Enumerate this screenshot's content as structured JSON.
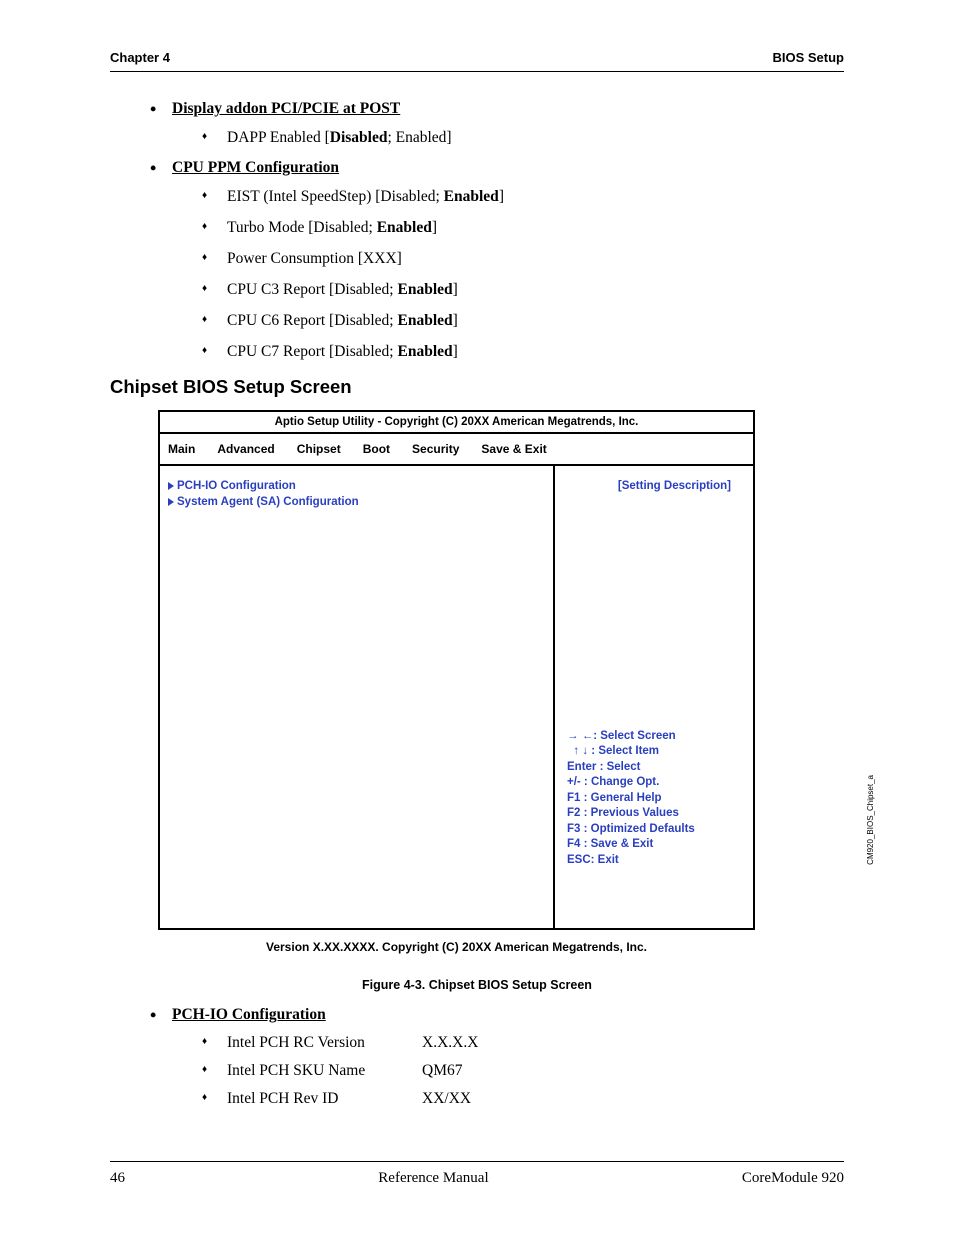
{
  "header": {
    "left": "Chapter 4",
    "right": "BIOS Setup"
  },
  "sections": {
    "displayAddon": {
      "title": "Display addon PCI/PCIE at POST",
      "items": [
        "DAPP Enabled [<b>Disabled</b>; Enabled]"
      ]
    },
    "cpuPpm": {
      "title": "CPU PPM Configuration",
      "items": [
        "EIST (Intel SpeedStep) [Disabled; <b>Enabled</b>]",
        "Turbo Mode [Disabled; <b>Enabled</b>]",
        "Power Consumption [XXX]",
        "CPU C3 Report [Disabled; <b>Enabled</b>]",
        "CPU C6 Report [Disabled; <b>Enabled</b>]",
        "CPU C7 Report [Disabled; <b>Enabled</b>]"
      ]
    },
    "pchIo": {
      "title": "PCH-IO Configuration",
      "rows": [
        {
          "label": "Intel PCH RC Version",
          "value": "X.X.X.X"
        },
        {
          "label": "Intel PCH SKU Name",
          "value": "QM67"
        },
        {
          "label": "Intel PCH Rev ID",
          "value": "XX/XX"
        }
      ]
    }
  },
  "heading": "Chipset BIOS Setup Screen",
  "bios": {
    "titlebar": "Aptio Setup Utility   -   Copyright (C) 20XX American Megatrends, Inc.",
    "tabs": [
      "Main",
      "Advanced",
      "Chipset",
      "Boot",
      "Security",
      "Save & Exit"
    ],
    "submenus": [
      "PCH-IO Configuration",
      "System Agent (SA) Configuration"
    ],
    "desc": "[Setting Description]",
    "help": {
      "selectScreen": ":   Select Screen",
      "selectItem": " :   Select Item",
      "lines": [
        "Enter :  Select",
        "+/- :  Change Opt.",
        "F1 :   General Help",
        "F2 :   Previous Values",
        "F3 :   Optimized Defaults",
        "F4 :   Save & Exit",
        "ESC:  Exit"
      ]
    },
    "version": "Version X.XX.XXXX.  Copyright (C) 20XX  American Megatrends, Inc.",
    "sideCaption": "CM920_BIOS_Chipset_a"
  },
  "figCaption": "Figure  4-3.   Chipset BIOS Setup Screen",
  "footer": {
    "page": "46",
    "center": "Reference Manual",
    "right": "CoreModule 920"
  }
}
